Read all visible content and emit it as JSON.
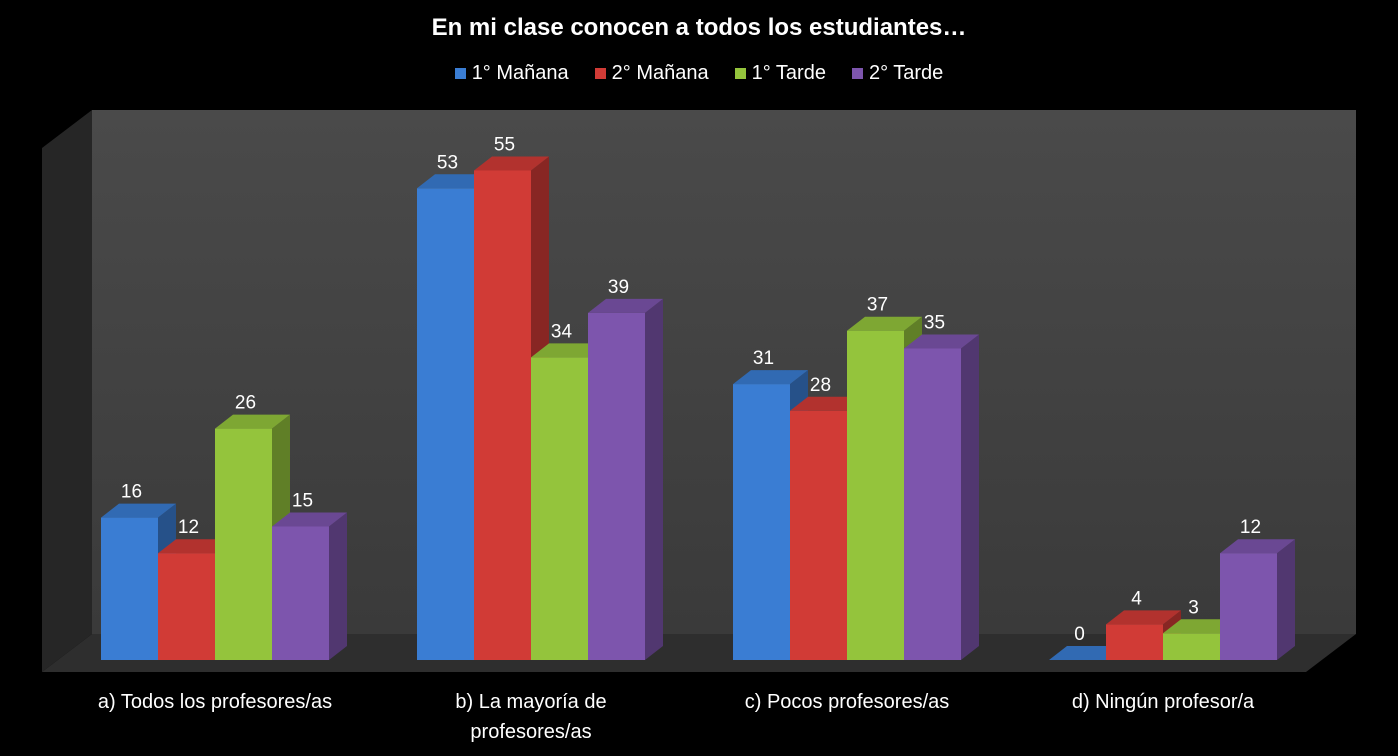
{
  "chart_data": {
    "type": "bar",
    "title": "En mi clase conocen a todos los estudiantes…",
    "categories": [
      [
        "a) Todos los profesores/as"
      ],
      [
        "b) La mayoría de",
        "profesores/as"
      ],
      [
        "c) Pocos profesores/as"
      ],
      [
        "d) Ningún profesor/a"
      ]
    ],
    "series": [
      {
        "name": "1° Mañana",
        "color": "#3a7dd3",
        "values": [
          16,
          53,
          31,
          0
        ]
      },
      {
        "name": "2° Mañana",
        "color": "#d13b36",
        "values": [
          12,
          55,
          28,
          4
        ]
      },
      {
        "name": "1° Tarde",
        "color": "#94c43c",
        "values": [
          26,
          34,
          37,
          3
        ]
      },
      {
        "name": "2° Tarde",
        "color": "#7d55ad",
        "values": [
          15,
          39,
          35,
          12
        ]
      }
    ],
    "ylim": [
      0,
      60
    ],
    "legend_position": "top",
    "style": "3d-clustered-column"
  }
}
